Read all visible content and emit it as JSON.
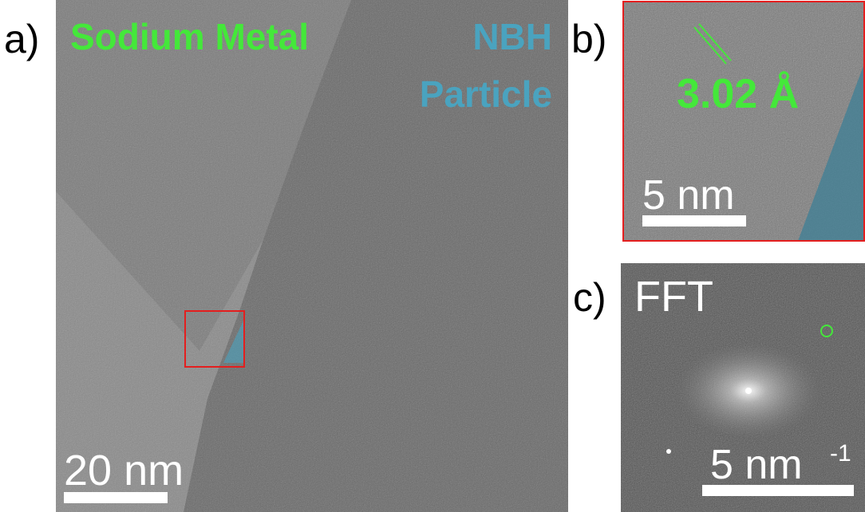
{
  "panel_a": {
    "label": "a)",
    "left_phase": "Sodium Metal",
    "right_phase_line1": "NBH",
    "right_phase_line2": "Particle",
    "scale_bar": "20 nm"
  },
  "panel_b": {
    "label": "b)",
    "d_spacing": "3.02 Å",
    "scale_bar": "5 nm"
  },
  "panel_c": {
    "label": "c)",
    "title": "FFT",
    "scale_bar": "5 nm",
    "scale_bar_exponent": "-1"
  }
}
